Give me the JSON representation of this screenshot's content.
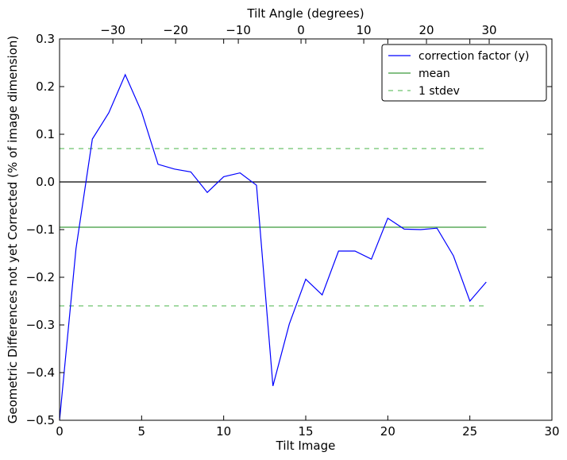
{
  "chart_data": {
    "type": "line",
    "title": "",
    "xlabel": "Tilt Image",
    "ylabel": "Geometric Differences not yet Corrected (% of image dimension)",
    "x2label": "Tilt Angle (degrees)",
    "xlim": [
      0,
      30
    ],
    "ylim": [
      -0.5,
      0.3
    ],
    "x2lim": [
      -38.5,
      40
    ],
    "xticks": [
      0,
      5,
      10,
      15,
      20,
      25,
      30
    ],
    "yticks": [
      -0.5,
      -0.4,
      -0.3,
      -0.2,
      -0.1,
      0.0,
      0.1,
      0.2,
      0.3
    ],
    "ytick_labels": [
      "−0.5",
      "−0.4",
      "−0.3",
      "−0.2",
      "−0.1",
      "0.0",
      "0.1",
      "0.2",
      "0.3"
    ],
    "x2ticks": [
      -30,
      -20,
      -10,
      0,
      10,
      20,
      30
    ],
    "x2tick_labels": [
      "−30",
      "−20",
      "−10",
      "0",
      "10",
      "20",
      "30"
    ],
    "grid": false,
    "legend_position": "top-right",
    "series": [
      {
        "name": "correction factor (y)",
        "color": "#0000ff",
        "style": "solid",
        "x": [
          0,
          1,
          2,
          3,
          4,
          5,
          6,
          7,
          8,
          9,
          10,
          11,
          12,
          13,
          14,
          15,
          16,
          17,
          18,
          19,
          20,
          21,
          22,
          23,
          24,
          25,
          26
        ],
        "y": [
          -0.5,
          -0.14,
          0.09,
          0.145,
          0.225,
          0.147,
          0.037,
          0.027,
          0.021,
          -0.022,
          0.011,
          0.019,
          -0.007,
          -0.428,
          -0.298,
          -0.204,
          -0.237,
          -0.145,
          -0.145,
          -0.162,
          -0.076,
          -0.099,
          -0.1,
          -0.097,
          -0.155,
          -0.25,
          -0.21
        ]
      },
      {
        "name": "mean",
        "color": "#3a9a3a",
        "style": "solid",
        "x": [
          0,
          26
        ],
        "y": [
          -0.095,
          -0.095
        ]
      },
      {
        "name": "1 stdev",
        "color": "#6dc46d",
        "style": "dashed",
        "x": [
          0,
          26
        ],
        "y": [
          0.07,
          0.07
        ]
      },
      {
        "name": "",
        "color": "#6dc46d",
        "style": "dashed",
        "x": [
          0,
          26
        ],
        "y": [
          -0.26,
          -0.26
        ]
      },
      {
        "name": "",
        "color": "#000000",
        "style": "solid",
        "x": [
          0,
          26
        ],
        "y": [
          0,
          0
        ]
      }
    ],
    "legend": [
      {
        "label": "correction factor (y)",
        "color": "#0000ff",
        "style": "solid"
      },
      {
        "label": "mean",
        "color": "#3a9a3a",
        "style": "solid"
      },
      {
        "label": "1 stdev",
        "color": "#6dc46d",
        "style": "dashed"
      }
    ]
  }
}
